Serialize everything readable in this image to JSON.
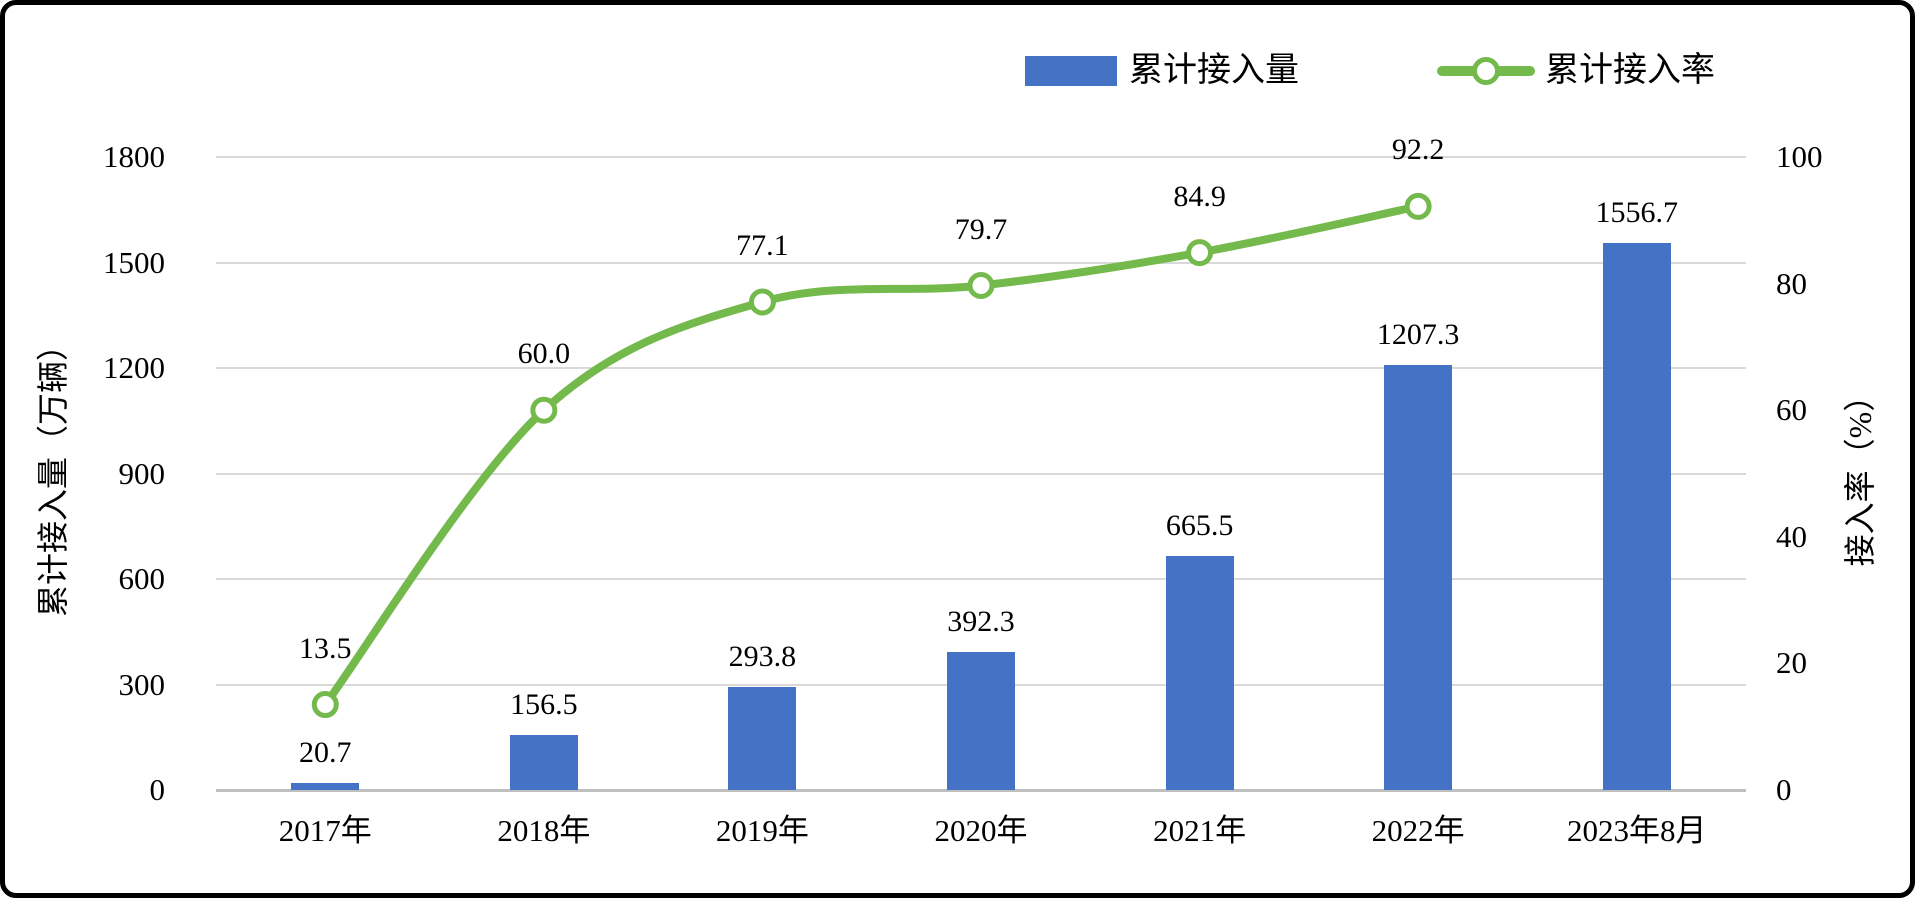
{
  "chart_data": {
    "type": "combo",
    "categories": [
      "2017年",
      "2018年",
      "2019年",
      "2020年",
      "2021年",
      "2022年",
      "2023年8月"
    ],
    "series": [
      {
        "name": "累计接入量",
        "chart_type": "bar",
        "axis": "left",
        "color": "#4472C4",
        "values": [
          20.7,
          156.5,
          293.8,
          392.3,
          665.5,
          1207.3,
          1556.7
        ],
        "labels": [
          "20.7",
          "156.5",
          "293.8",
          "392.3",
          "665.5",
          "1207.3",
          "1556.7"
        ]
      },
      {
        "name": "累计接入率",
        "chart_type": "line",
        "axis": "right",
        "color": "#74B94B",
        "smooth": true,
        "values": [
          13.5,
          60.0,
          77.1,
          79.7,
          84.9,
          92.2
        ],
        "labels": [
          "13.5",
          "60.0",
          "77.1",
          "79.7",
          "84.9",
          "92.2"
        ]
      }
    ],
    "left_axis": {
      "title": "累计接入量（万辆）",
      "ticks": [
        "1800",
        "1500",
        "1200",
        "900",
        "600",
        "300",
        "0"
      ],
      "min": 0,
      "max": 1800
    },
    "right_axis": {
      "title": "接入率（%）",
      "ticks": [
        "100",
        "80",
        "60",
        "40",
        "20",
        "0"
      ],
      "min": 0,
      "max": 100
    },
    "legend": {
      "position": "top",
      "items": [
        {
          "label": "累计接入量",
          "marker": "bar-swatch"
        },
        {
          "label": "累计接入率",
          "marker": "line-with-circle"
        }
      ]
    },
    "grid": true,
    "gridline_color": "#D9D9D9",
    "axisline_color": "#BFBFBF",
    "background": "#FFFFFF"
  }
}
